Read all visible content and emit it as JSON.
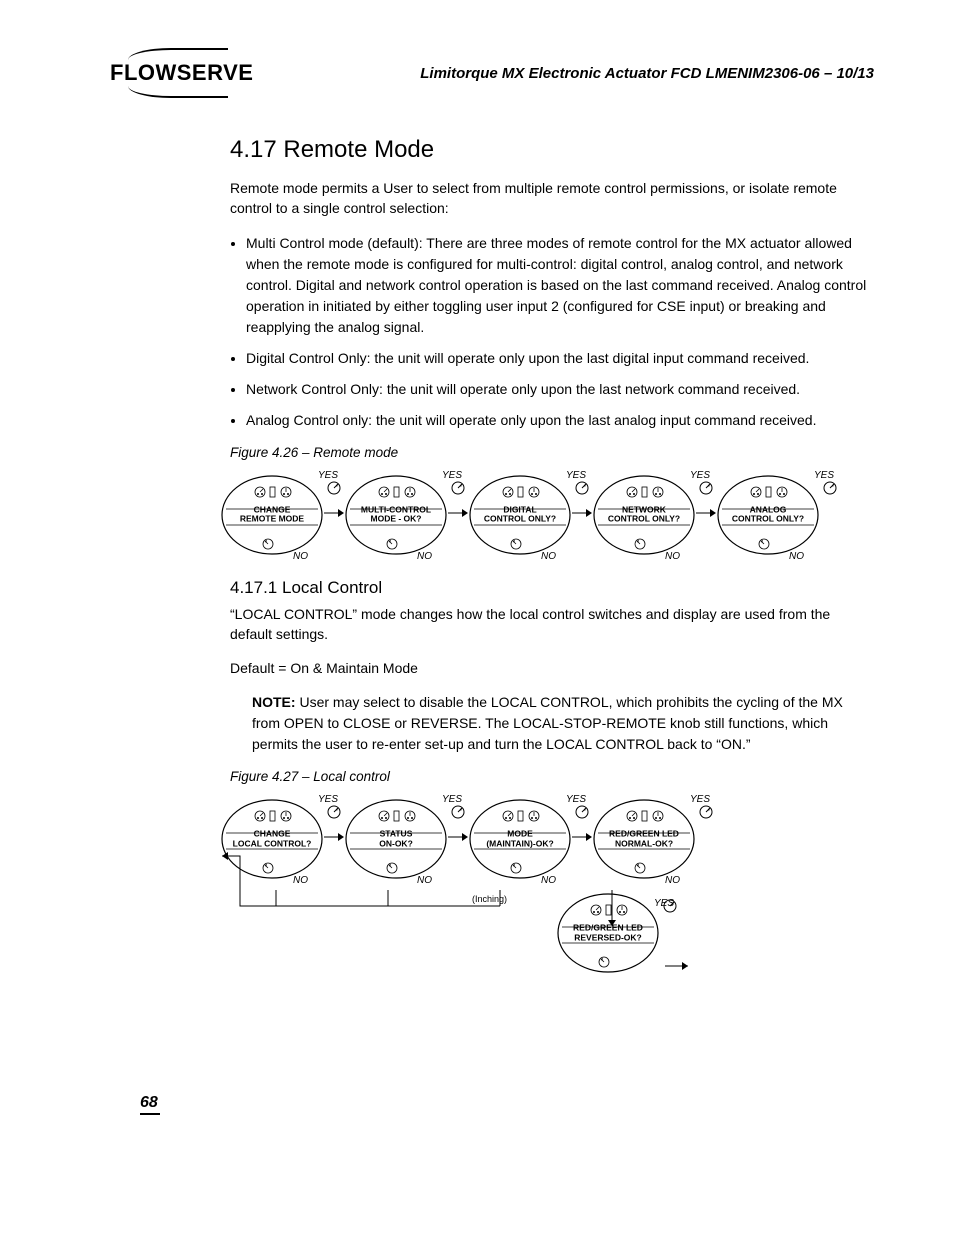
{
  "header": {
    "logo_text": "FLOWSERVE",
    "doc_title": "Limitorque MX Electronic Actuator   FCD LMENIM2306-06 – 10/13"
  },
  "section": {
    "number_title": "4.17 Remote Mode",
    "intro": "Remote mode permits a User to select from multiple remote control permissions, or isolate remote control to a single control selection:",
    "bullets": [
      "Multi Control mode (default): There are three modes of remote control for the MX actuator allowed when the remote mode is configured for multi-control: digital control, analog control, and network control.  Digital and network control operation is based on the last command received.  Analog control operation in initiated by either toggling user input 2 (configured for CSE input) or breaking and reapplying the analog signal.",
      "Digital Control Only: the unit will operate only upon the last digital input command received.",
      "Network Control Only: the unit will operate only upon the last network command received.",
      "Analog Control only: the unit will operate only upon the last analog input command received."
    ],
    "fig1_caption": "Figure 4.26 – Remote mode",
    "flow1": {
      "yes": "YES",
      "no": "NO",
      "nodes": [
        "CHANGE\nREMOTE MODE",
        "MULTI-CONTROL\nMODE - OK?",
        "DIGITAL\nCONTROL ONLY?",
        "NETWORK\nCONTROL ONLY?",
        "ANALOG\nCONTROL ONLY?"
      ]
    },
    "sub_title": "4.17.1 Local Control",
    "sub_intro": "“LOCAL CONTROL” mode changes how the local control switches and display are used from the default settings.",
    "default_line": "Default = On & Maintain Mode",
    "note": "User may select to disable the LOCAL CONTROL, which prohibits the cycling of the MX from OPEN to CLOSE or REVERSE. The LOCAL-STOP-REMOTE knob still functions, which permits the user to re-enter set-up and turn the LOCAL CONTROL back to “ON.”",
    "note_label": "NOTE:",
    "fig2_caption": "Figure 4.27 – Local control",
    "flow2": {
      "yes": "YES",
      "no": "NO",
      "inching": "(Inching)",
      "nodes": [
        "CHANGE\nLOCAL CONTROL?",
        "STATUS\nON-OK?",
        "MODE\n(MAINTAIN)-OK?",
        "RED/GREEN LED\nNORMAL-OK?"
      ],
      "node5": "RED/GREEN LED\nREVERSED-OK?"
    }
  },
  "page_number": "68",
  "colors": {
    "text": "#000000",
    "bg": "#ffffff"
  }
}
